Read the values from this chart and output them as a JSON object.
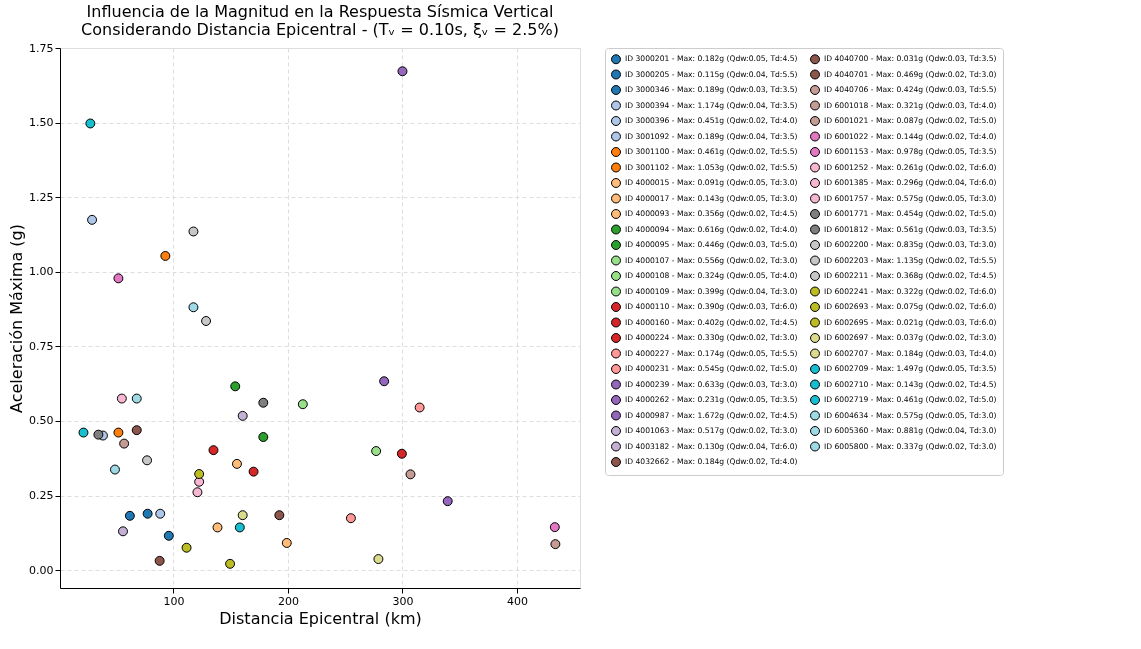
{
  "chart_data": {
    "type": "scatter",
    "title": "Influencia de la Magnitud en la Respuesta Sísmica Vertical\nConsiderando Distancia Epicentral - (Tᵥ = 0.10s, ξᵥ = 2.5%)",
    "xlabel": "Distancia Epicentral (km)",
    "ylabel": "Aceleración Máxima (g)",
    "xlim": [
      1,
      455
    ],
    "ylim": [
      -0.06,
      1.75
    ],
    "xticks": [
      100,
      200,
      300,
      400
    ],
    "yticks": [
      {
        "value": 0,
        "label": "0.00"
      },
      {
        "value": 0.25,
        "label": "0.25"
      },
      {
        "value": 0.5,
        "label": "0.50"
      },
      {
        "value": 0.75,
        "label": "0.75"
      },
      {
        "value": 1,
        "label": "1.00"
      },
      {
        "value": 1.25,
        "label": "1.25"
      },
      {
        "value": 1.5,
        "label": "1.50"
      },
      {
        "value": 1.75,
        "label": "1.75"
      }
    ],
    "grid": true,
    "legend": "right",
    "marker": "circle",
    "series": [
      {
        "name": "ID 3000201 - Max: 0.182g (Qdw:0.05, Td:4.5)",
        "color": "#1f77b4",
        "x": [
          62
        ],
        "values": [
          0.182
        ]
      },
      {
        "name": "ID 3000205 - Max: 0.115g (Qdw:0.04, Td:5.5)",
        "color": "#1f77b4",
        "x": [
          96
        ],
        "values": [
          0.115
        ]
      },
      {
        "name": "ID 3000346 - Max: 0.189g (Qdw:0.03, Td:3.5)",
        "color": "#1f77b4",
        "x": [
          77.5
        ],
        "values": [
          0.189
        ]
      },
      {
        "name": "ID 3000394 - Max: 1.174g (Qdw:0.04, Td:3.5)",
        "color": "#aec7e8",
        "x": [
          29
        ],
        "values": [
          1.174
        ]
      },
      {
        "name": "ID 3000396 - Max: 0.451g (Qdw:0.02, Td:4.0)",
        "color": "#aec7e8",
        "x": [
          38.5
        ],
        "values": [
          0.451
        ]
      },
      {
        "name": "ID 3001092 - Max: 0.189g (Qdw:0.04, Td:3.5)",
        "color": "#aec7e8",
        "x": [
          88.5
        ],
        "values": [
          0.189
        ]
      },
      {
        "name": "ID 3001100 - Max: 0.461g (Qdw:0.02, Td:5.5)",
        "color": "#ff7f0e",
        "x": [
          52
        ],
        "values": [
          0.461
        ]
      },
      {
        "name": "ID 3001102 - Max: 1.053g (Qdw:0.02, Td:5.5)",
        "color": "#ff7f0e",
        "x": [
          93
        ],
        "values": [
          1.053
        ]
      },
      {
        "name": "ID 4000015 - Max: 0.091g (Qdw:0.05, Td:3.0)",
        "color": "#ffbb78",
        "x": [
          199
        ],
        "values": [
          0.091
        ]
      },
      {
        "name": "ID 4000017 - Max: 0.143g (Qdw:0.05, Td:3.0)",
        "color": "#ffbb78",
        "x": [
          138.5
        ],
        "values": [
          0.143
        ]
      },
      {
        "name": "ID 4000093 - Max: 0.356g (Qdw:0.02, Td:4.5)",
        "color": "#ffbb78",
        "x": [
          155.5
        ],
        "values": [
          0.356
        ]
      },
      {
        "name": "ID 4000094 - Max: 0.616g (Qdw:0.02, Td:4.0)",
        "color": "#2ca02c",
        "x": [
          154
        ],
        "values": [
          0.616
        ]
      },
      {
        "name": "ID 4000095 - Max: 0.446g (Qdw:0.03, Td:5.0)",
        "color": "#2ca02c",
        "x": [
          178.5
        ],
        "values": [
          0.446
        ]
      },
      {
        "name": "ID 4000107 - Max: 0.556g (Qdw:0.02, Td:3.0)",
        "color": "#98df8a",
        "x": [
          213
        ],
        "values": [
          0.556
        ]
      },
      {
        "name": "ID 4000108 - Max: 0.324g (Qdw:0.05, Td:4.0)",
        "color": "#98df8a",
        "x": [
          null
        ],
        "values": [
          null
        ]
      },
      {
        "name": "ID 4000109 - Max: 0.399g (Qdw:0.04, Td:3.0)",
        "color": "#98df8a",
        "x": [
          277
        ],
        "values": [
          0.399
        ]
      },
      {
        "name": "ID 4000110 - Max: 0.390g (Qdw:0.03, Td:6.0)",
        "color": "#d62728",
        "x": [
          299.5
        ],
        "values": [
          0.39
        ]
      },
      {
        "name": "ID 4000160 - Max: 0.402g (Qdw:0.02, Td:4.5)",
        "color": "#d62728",
        "x": [
          135
        ],
        "values": [
          0.402
        ]
      },
      {
        "name": "ID 4000224 - Max: 0.330g (Qdw:0.02, Td:3.0)",
        "color": "#d62728",
        "x": [
          170
        ],
        "values": [
          0.33
        ]
      },
      {
        "name": "ID 4000227 - Max: 0.174g (Qdw:0.05, Td:5.5)",
        "color": "#ff9896",
        "x": [
          255
        ],
        "values": [
          0.174
        ]
      },
      {
        "name": "ID 4000231 - Max: 0.545g (Qdw:0.02, Td:5.0)",
        "color": "#ff9896",
        "x": [
          315
        ],
        "values": [
          0.545
        ]
      },
      {
        "name": "ID 4000239 - Max: 0.633g (Qdw:0.03, Td:3.0)",
        "color": "#9467bd",
        "x": [
          284
        ],
        "values": [
          0.633
        ]
      },
      {
        "name": "ID 4000262 - Max: 0.231g (Qdw:0.05, Td:3.5)",
        "color": "#9467bd",
        "x": [
          339.5
        ],
        "values": [
          0.231
        ]
      },
      {
        "name": "ID 4000987 - Max: 1.672g (Qdw:0.02, Td:4.5)",
        "color": "#9467bd",
        "x": [
          300
        ],
        "values": [
          1.672
        ]
      },
      {
        "name": "ID 4001063 - Max: 0.517g (Qdw:0.02, Td:3.0)",
        "color": "#c5b0d5",
        "x": [
          160.5
        ],
        "values": [
          0.517
        ]
      },
      {
        "name": "ID 4003182 - Max: 0.130g (Qdw:0.04, Td:6.0)",
        "color": "#c5b0d5",
        "x": [
          56
        ],
        "values": [
          0.13
        ]
      },
      {
        "name": "ID 4032662 - Max: 0.184g (Qdw:0.02, Td:4.0)",
        "color": "#8c564b",
        "x": [
          192.5
        ],
        "values": [
          0.184
        ]
      },
      {
        "name": "ID 4040700 - Max: 0.031g (Qdw:0.03, Td:3.5)",
        "color": "#8c564b",
        "x": [
          88
        ],
        "values": [
          0.031
        ]
      },
      {
        "name": "ID 4040701 - Max: 0.469g (Qdw:0.02, Td:3.0)",
        "color": "#8c564b",
        "x": [
          68
        ],
        "values": [
          0.469
        ]
      },
      {
        "name": "ID 4040706 - Max: 0.424g (Qdw:0.03, Td:5.5)",
        "color": "#c49c94",
        "x": [
          57
        ],
        "values": [
          0.424
        ]
      },
      {
        "name": "ID 6001018 - Max: 0.321g (Qdw:0.03, Td:4.0)",
        "color": "#c49c94",
        "x": [
          307
        ],
        "values": [
          0.321
        ]
      },
      {
        "name": "ID 6001021 - Max: 0.087g (Qdw:0.02, Td:5.0)",
        "color": "#c49c94",
        "x": [
          433.5
        ],
        "values": [
          0.087
        ]
      },
      {
        "name": "ID 6001022 - Max: 0.144g (Qdw:0.02, Td:4.0)",
        "color": "#e377c2",
        "x": [
          433
        ],
        "values": [
          0.144
        ]
      },
      {
        "name": "ID 6001153 - Max: 0.978g (Qdw:0.05, Td:3.5)",
        "color": "#e377c2",
        "x": [
          52
        ],
        "values": [
          0.978
        ]
      },
      {
        "name": "ID 6001252 - Max: 0.261g (Qdw:0.02, Td:6.0)",
        "color": "#f7b6d2",
        "x": [
          121
        ],
        "values": [
          0.261
        ]
      },
      {
        "name": "ID 6001385 - Max: 0.296g (Qdw:0.04, Td:6.0)",
        "color": "#f7b6d2",
        "x": [
          122.5
        ],
        "values": [
          0.296
        ]
      },
      {
        "name": "ID 6001757 - Max: 0.575g (Qdw:0.05, Td:3.0)",
        "color": "#f7b6d2",
        "x": [
          55
        ],
        "values": [
          0.575
        ]
      },
      {
        "name": "ID 6001771 - Max: 0.454g (Qdw:0.02, Td:5.0)",
        "color": "#7f7f7f",
        "x": [
          34.5
        ],
        "values": [
          0.454
        ]
      },
      {
        "name": "ID 6001812 - Max: 0.561g (Qdw:0.03, Td:3.5)",
        "color": "#7f7f7f",
        "x": [
          178.5
        ],
        "values": [
          0.561
        ]
      },
      {
        "name": "ID 6002200 - Max: 0.835g (Qdw:0.03, Td:3.0)",
        "color": "#c7c7c7",
        "x": [
          128.5
        ],
        "values": [
          0.835
        ]
      },
      {
        "name": "ID 6002203 - Max: 1.135g (Qdw:0.02, Td:5.5)",
        "color": "#c7c7c7",
        "x": [
          117.5
        ],
        "values": [
          1.135
        ]
      },
      {
        "name": "ID 6002211 - Max: 0.368g (Qdw:0.02, Td:4.5)",
        "color": "#c7c7c7",
        "x": [
          77
        ],
        "values": [
          0.368
        ]
      },
      {
        "name": "ID 6002241 - Max: 0.322g (Qdw:0.02, Td:6.0)",
        "color": "#bcbd22",
        "x": [
          122.5
        ],
        "values": [
          0.322
        ]
      },
      {
        "name": "ID 6002693 - Max: 0.075g (Qdw:0.02, Td:6.0)",
        "color": "#bcbd22",
        "x": [
          111.5
        ],
        "values": [
          0.075
        ]
      },
      {
        "name": "ID 6002695 - Max: 0.021g (Qdw:0.03, Td:6.0)",
        "color": "#bcbd22",
        "x": [
          149.5
        ],
        "values": [
          0.021
        ]
      },
      {
        "name": "ID 6002697 - Max: 0.037g (Qdw:0.02, Td:3.0)",
        "color": "#dbdb8d",
        "x": [
          279
        ],
        "values": [
          0.037
        ]
      },
      {
        "name": "ID 6002707 - Max: 0.184g (Qdw:0.03, Td:4.0)",
        "color": "#dbdb8d",
        "x": [
          160.5
        ],
        "values": [
          0.184
        ]
      },
      {
        "name": "ID 6002709 - Max: 1.497g (Qdw:0.05, Td:3.5)",
        "color": "#17becf",
        "x": [
          27.5
        ],
        "values": [
          1.497
        ]
      },
      {
        "name": "ID 6002710 - Max: 0.143g (Qdw:0.02, Td:4.5)",
        "color": "#17becf",
        "x": [
          158
        ],
        "values": [
          0.143
        ]
      },
      {
        "name": "ID 6002719 - Max: 0.461g (Qdw:0.02, Td:5.0)",
        "color": "#17becf",
        "x": [
          21.5
        ],
        "values": [
          0.461
        ]
      },
      {
        "name": "ID 6004634 - Max: 0.575g (Qdw:0.05, Td:3.0)",
        "color": "#9edae5",
        "x": [
          68
        ],
        "values": [
          0.575
        ]
      },
      {
        "name": "ID 6005360 - Max: 0.881g (Qdw:0.04, Td:3.0)",
        "color": "#9edae5",
        "x": [
          117.5
        ],
        "values": [
          0.881
        ]
      },
      {
        "name": "ID 6005800 - Max: 0.337g (Qdw:0.02, Td:3.0)",
        "color": "#9edae5",
        "x": [
          49
        ],
        "values": [
          0.337
        ]
      }
    ]
  }
}
